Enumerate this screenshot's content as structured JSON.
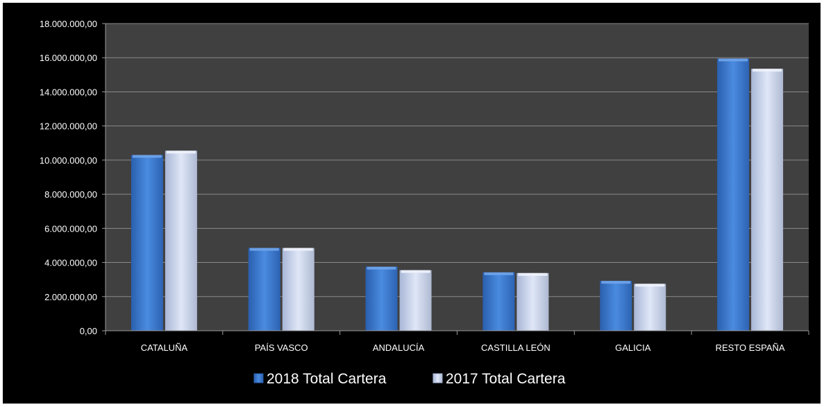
{
  "chart_data": {
    "type": "bar",
    "categories": [
      "CATALUÑA",
      "PAÍS VASCO",
      "ANDALUCÍA",
      "CASTILLA LEÓN",
      "GALICIA",
      "RESTO ESPAÑA"
    ],
    "series": [
      {
        "name": "2018 Total Cartera",
        "values": [
          10300000,
          4850000,
          3750000,
          3420000,
          2920000,
          15950000
        ],
        "color": "#3f7fd6"
      },
      {
        "name": "2017 Total Cartera",
        "values": [
          10550000,
          4850000,
          3550000,
          3380000,
          2750000,
          15350000
        ],
        "color": "#c9d6ef"
      }
    ],
    "yticks": [
      "0,00",
      "2.000.000,00",
      "4.000.000,00",
      "6.000.000,00",
      "8.000.000,00",
      "10.000.000,00",
      "12.000.000,00",
      "14.000.000,00",
      "16.000.000,00",
      "18.000.000,00"
    ],
    "ylim": [
      0,
      18000000
    ],
    "title": "",
    "xlabel": "",
    "ylabel": "",
    "grid": true,
    "legend_position": "bottom",
    "plot_background": "#404040",
    "chart_background": "#000000",
    "gridline_color": "#8a8a8a"
  }
}
